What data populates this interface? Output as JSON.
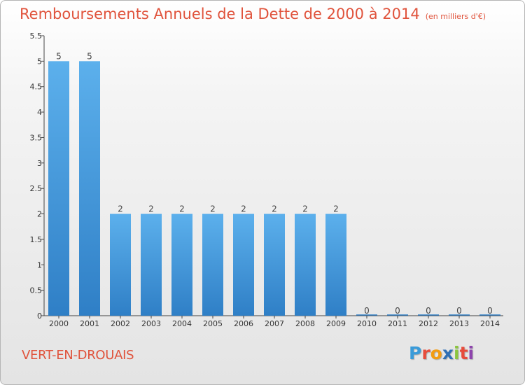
{
  "header": {
    "title": "Remboursements Annuels de la Dette de 2000 à 2014",
    "unit": "(en milliers d'€)"
  },
  "commune": "VERT-EN-DROUAIS",
  "logo": {
    "text": "Proxiti"
  },
  "colors": {
    "title": "#e0533c",
    "bar_top": "#5cb0ec",
    "bar_bottom": "#2f7fc6"
  },
  "chart_data": {
    "type": "bar",
    "categories": [
      "2000",
      "2001",
      "2002",
      "2003",
      "2004",
      "2005",
      "2006",
      "2007",
      "2008",
      "2009",
      "2010",
      "2011",
      "2012",
      "2013",
      "2014"
    ],
    "values": [
      5,
      5,
      2,
      2,
      2,
      2,
      2,
      2,
      2,
      2,
      0,
      0,
      0,
      0,
      0
    ],
    "value_labels": [
      "5",
      "5",
      "2",
      "2",
      "2",
      "2",
      "2",
      "2",
      "2",
      "2",
      "0",
      "0",
      "0",
      "0",
      "0"
    ],
    "ylim": [
      0,
      5.5
    ],
    "yticks": [
      0,
      0.5,
      1,
      1.5,
      2,
      2.5,
      3,
      3.5,
      4,
      4.5,
      5,
      5.5
    ],
    "ytick_labels": [
      "0",
      "0.5",
      "1",
      "1.5",
      "2",
      "2.5",
      "3",
      "3.5",
      "4",
      "4.5",
      "5",
      "5.5"
    ],
    "grid": false,
    "legend": "none"
  }
}
